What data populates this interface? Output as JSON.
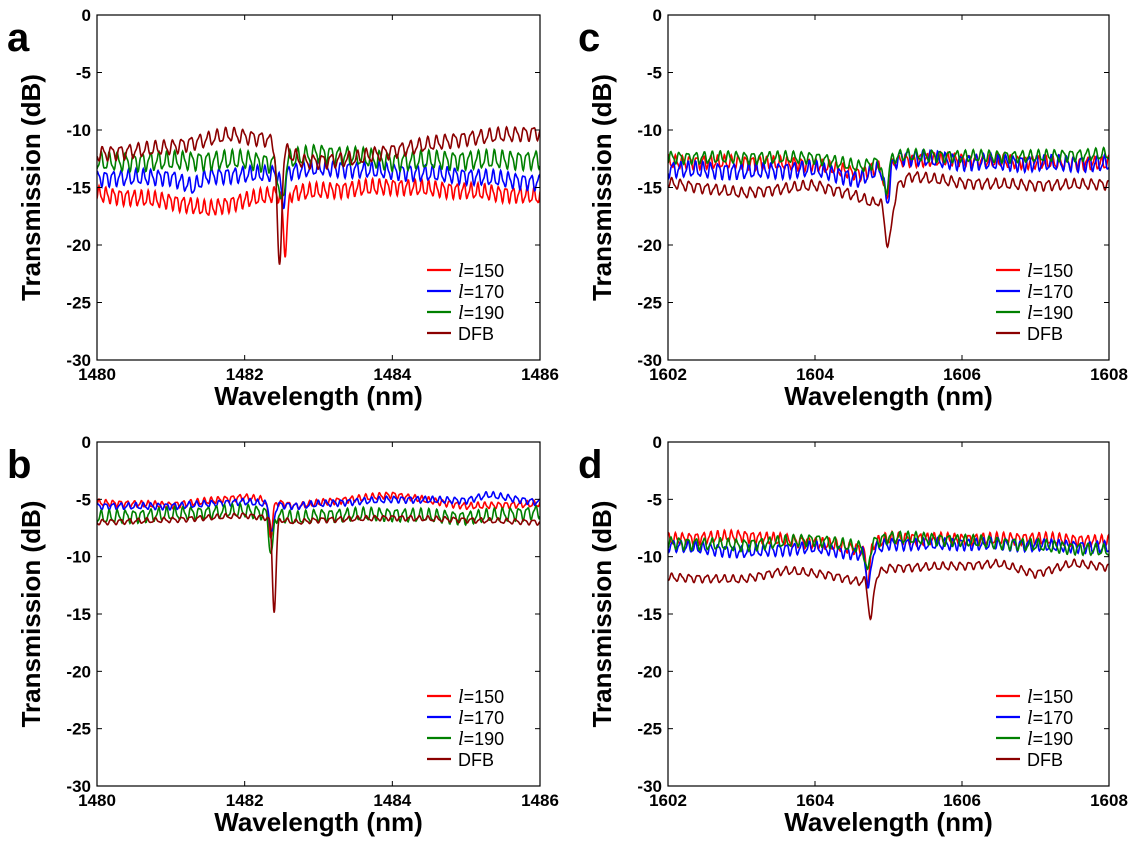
{
  "chart_data": [
    {
      "panel_label": "a",
      "type": "line",
      "xlabel": "Wavelength (nm)",
      "ylabel": "Transmission (dB)",
      "xlim": [
        1480,
        1486
      ],
      "ylim": [
        -30,
        0
      ],
      "xticks": [
        1480,
        1482,
        1484,
        1486
      ],
      "yticks": [
        0,
        -5,
        -10,
        -15,
        -20,
        -25,
        -30
      ],
      "legend": "bottom-right",
      "series": [
        {
          "name": "=150",
          "legend_italic": "l",
          "color": "#ff0000",
          "baseline": [
            [
              1480,
              -15.6
            ],
            [
              1481,
              -16.2
            ],
            [
              1481.5,
              -16.9
            ],
            [
              1482,
              -16.1
            ],
            [
              1482.4,
              -15.6
            ],
            [
              1483,
              -15.3
            ],
            [
              1484,
              -14.9
            ],
            [
              1485,
              -15.3
            ],
            [
              1486,
              -15.8
            ]
          ],
          "ripple": 0.6,
          "dip": {
            "x": 1482.55,
            "depth": -4.8,
            "width": 0.04
          }
        },
        {
          "name": "=170",
          "legend_italic": "l",
          "color": "#0000ff",
          "baseline": [
            [
              1480,
              -14.2
            ],
            [
              1481,
              -14.1
            ],
            [
              1481.3,
              -15.0
            ],
            [
              1481.5,
              -14.0
            ],
            [
              1482.4,
              -13.8
            ],
            [
              1483,
              -13.3
            ],
            [
              1484,
              -13.6
            ],
            [
              1485,
              -14.0
            ],
            [
              1486,
              -14.6
            ]
          ],
          "ripple": 0.6,
          "dip": {
            "x": 1482.52,
            "depth": -2.6,
            "width": 0.04
          }
        },
        {
          "name": "=190",
          "legend_italic": "l",
          "color": "#008000",
          "baseline": [
            [
              1480,
              -12.8
            ],
            [
              1481,
              -12.7
            ],
            [
              1482,
              -12.6
            ],
            [
              1482.4,
              -12.9
            ],
            [
              1483,
              -12.0
            ],
            [
              1484,
              -12.7
            ],
            [
              1485,
              -12.6
            ],
            [
              1486,
              -12.6
            ]
          ],
          "ripple": 0.7,
          "dip": {
            "x": 1482.5,
            "depth": -3.8,
            "width": 0.05
          }
        },
        {
          "name": "DFB",
          "color": "#8b0000",
          "baseline": [
            [
              1480,
              -12.1
            ],
            [
              1481,
              -11.5
            ],
            [
              1481.8,
              -10.4
            ],
            [
              1482.3,
              -10.8
            ],
            [
              1482.8,
              -12.8
            ],
            [
              1483.5,
              -12.5
            ],
            [
              1484,
              -11.8
            ],
            [
              1485,
              -10.7
            ],
            [
              1486,
              -10.2
            ]
          ],
          "ripple": 0.55,
          "dip": {
            "x": 1482.47,
            "depth": -10.8,
            "width": 0.04
          }
        }
      ]
    },
    {
      "panel_label": "c",
      "type": "line",
      "xlabel": "Wavelength (nm)",
      "ylabel": "Transmission (dB)",
      "xlim": [
        1602,
        1608
      ],
      "ylim": [
        -30,
        0
      ],
      "xticks": [
        1602,
        1604,
        1606,
        1608
      ],
      "yticks": [
        0,
        -5,
        -10,
        -15,
        -20,
        -25,
        -30
      ],
      "legend": "bottom-right",
      "series": [
        {
          "name": "=150",
          "legend_italic": "l",
          "color": "#ff0000",
          "baseline": [
            [
              1602,
              -12.8
            ],
            [
              1603,
              -12.8
            ],
            [
              1604,
              -13.0
            ],
            [
              1604.6,
              -13.8
            ],
            [
              1605.2,
              -12.6
            ],
            [
              1606,
              -12.6
            ],
            [
              1607,
              -12.8
            ],
            [
              1608,
              -12.9
            ]
          ],
          "ripple": 0.5,
          "dip": {
            "x": 1604.97,
            "depth": -2.8,
            "width": 0.05
          }
        },
        {
          "name": "=170",
          "legend_italic": "l",
          "color": "#0000ff",
          "baseline": [
            [
              1602,
              -13.4
            ],
            [
              1603,
              -13.6
            ],
            [
              1604,
              -13.4
            ],
            [
              1604.6,
              -14.3
            ],
            [
              1605.2,
              -12.3
            ],
            [
              1606,
              -12.8
            ],
            [
              1607,
              -12.9
            ],
            [
              1608,
              -12.9
            ]
          ],
          "ripple": 0.6,
          "dip": {
            "x": 1604.98,
            "depth": -3.2,
            "width": 0.05
          }
        },
        {
          "name": "=190",
          "legend_italic": "l",
          "color": "#008000",
          "baseline": [
            [
              1602,
              -12.4
            ],
            [
              1603,
              -12.4
            ],
            [
              1604,
              -12.4
            ],
            [
              1604.6,
              -13.2
            ],
            [
              1605.2,
              -12.2
            ],
            [
              1606,
              -12.3
            ],
            [
              1607,
              -12.3
            ],
            [
              1608,
              -12.1
            ]
          ],
          "ripple": 0.45,
          "dip": {
            "x": 1604.96,
            "depth": -2.8,
            "width": 0.05
          }
        },
        {
          "name": "DFB",
          "color": "#8b0000",
          "baseline": [
            [
              1602,
              -14.6
            ],
            [
              1603,
              -15.5
            ],
            [
              1604,
              -14.8
            ],
            [
              1604.5,
              -15.6
            ],
            [
              1604.8,
              -16.4
            ],
            [
              1605.3,
              -14.0
            ],
            [
              1606,
              -14.6
            ],
            [
              1607,
              -14.8
            ],
            [
              1608,
              -14.7
            ]
          ],
          "ripple": 0.4,
          "dip": {
            "x": 1605.0,
            "depth": -4.5,
            "width": 0.07
          }
        }
      ]
    },
    {
      "panel_label": "b",
      "type": "line",
      "xlabel": "Wavelength (nm)",
      "ylabel": "Transmission (dB)",
      "xlim": [
        1480,
        1486
      ],
      "ylim": [
        -30,
        0
      ],
      "xticks": [
        1480,
        1482,
        1484,
        1486
      ],
      "yticks": [
        0,
        -5,
        -10,
        -15,
        -20,
        -25,
        -30
      ],
      "legend": "bottom-right",
      "series": [
        {
          "name": "=150",
          "legend_italic": "l",
          "color": "#ff0000",
          "baseline": [
            [
              1480,
              -5.3
            ],
            [
              1481,
              -5.5
            ],
            [
              1482,
              -4.8
            ],
            [
              1482.3,
              -5.1
            ],
            [
              1482.7,
              -5.6
            ],
            [
              1483,
              -5.3
            ],
            [
              1484,
              -4.6
            ],
            [
              1485,
              -5.6
            ],
            [
              1486,
              -5.4
            ]
          ],
          "ripple": 0.25,
          "dip": {
            "x": 1482.35,
            "depth": -3.0,
            "width": 0.04
          }
        },
        {
          "name": "=170",
          "legend_italic": "l",
          "color": "#0000ff",
          "baseline": [
            [
              1480,
              -5.6
            ],
            [
              1481,
              -5.6
            ],
            [
              1482,
              -5.2
            ],
            [
              1482.3,
              -5.4
            ],
            [
              1482.7,
              -5.6
            ],
            [
              1483,
              -5.4
            ],
            [
              1484,
              -5.0
            ],
            [
              1485,
              -5.1
            ],
            [
              1485.3,
              -4.6
            ],
            [
              1486,
              -5.3
            ]
          ],
          "ripple": 0.25,
          "dip": {
            "x": 1482.37,
            "depth": -2.6,
            "width": 0.04
          }
        },
        {
          "name": "=190",
          "legend_italic": "l",
          "color": "#008000",
          "baseline": [
            [
              1480,
              -6.6
            ],
            [
              1481,
              -6.3
            ],
            [
              1482,
              -6.0
            ],
            [
              1482.3,
              -6.2
            ],
            [
              1482.7,
              -6.7
            ],
            [
              1483,
              -6.4
            ],
            [
              1484,
              -6.3
            ],
            [
              1485,
              -6.6
            ],
            [
              1486,
              -6.1
            ]
          ],
          "ripple": 0.5,
          "dip": {
            "x": 1482.36,
            "depth": -3.5,
            "width": 0.04
          }
        },
        {
          "name": "DFB",
          "color": "#8b0000",
          "baseline": [
            [
              1480,
              -7.0
            ],
            [
              1481,
              -6.8
            ],
            [
              1482,
              -6.4
            ],
            [
              1482.3,
              -6.6
            ],
            [
              1482.7,
              -7.0
            ],
            [
              1483,
              -6.8
            ],
            [
              1484,
              -6.6
            ],
            [
              1485,
              -6.8
            ],
            [
              1486,
              -7.0
            ]
          ],
          "ripple": 0.2,
          "dip": {
            "x": 1482.4,
            "depth": -8.0,
            "width": 0.035
          }
        }
      ]
    },
    {
      "panel_label": "d",
      "type": "line",
      "xlabel": "Wavelength (nm)",
      "ylabel": "Transmission (dB)",
      "xlim": [
        1602,
        1608
      ],
      "ylim": [
        -30,
        0
      ],
      "xticks": [
        1602,
        1604,
        1606,
        1608
      ],
      "yticks": [
        0,
        -5,
        -10,
        -15,
        -20,
        -25,
        -30
      ],
      "legend": "bottom-right",
      "series": [
        {
          "name": "=150",
          "legend_italic": "l",
          "color": "#ff0000",
          "baseline": [
            [
              1602,
              -8.5
            ],
            [
              1603,
              -8.2
            ],
            [
              1604,
              -8.8
            ],
            [
              1604.6,
              -9.3
            ],
            [
              1605,
              -8.4
            ],
            [
              1606,
              -8.5
            ],
            [
              1607,
              -8.4
            ],
            [
              1608,
              -8.7
            ]
          ],
          "ripple": 0.45,
          "dip": {
            "x": 1604.72,
            "depth": -3.0,
            "width": 0.04
          }
        },
        {
          "name": "=170",
          "legend_italic": "l",
          "color": "#0000ff",
          "baseline": [
            [
              1602,
              -9.0
            ],
            [
              1603,
              -9.6
            ],
            [
              1604,
              -9.2
            ],
            [
              1604.6,
              -9.8
            ],
            [
              1605,
              -8.9
            ],
            [
              1606,
              -8.9
            ],
            [
              1607,
              -9.0
            ],
            [
              1608,
              -9.2
            ]
          ],
          "ripple": 0.45,
          "dip": {
            "x": 1604.73,
            "depth": -3.3,
            "width": 0.04
          }
        },
        {
          "name": "=190",
          "legend_italic": "l",
          "color": "#008000",
          "baseline": [
            [
              1602,
              -8.8
            ],
            [
              1603,
              -9.0
            ],
            [
              1604,
              -8.5
            ],
            [
              1604.6,
              -9.2
            ],
            [
              1605,
              -8.3
            ],
            [
              1606,
              -8.6
            ],
            [
              1607,
              -9.0
            ],
            [
              1608,
              -9.5
            ]
          ],
          "ripple": 0.45,
          "dip": {
            "x": 1604.71,
            "depth": -2.5,
            "width": 0.04
          }
        },
        {
          "name": "DFB",
          "color": "#8b0000",
          "baseline": [
            [
              1602,
              -11.8
            ],
            [
              1603,
              -12.0
            ],
            [
              1603.6,
              -11.2
            ],
            [
              1604.2,
              -11.6
            ],
            [
              1604.6,
              -12.2
            ],
            [
              1605,
              -11.0
            ],
            [
              1606,
              -10.8
            ],
            [
              1606.5,
              -10.6
            ],
            [
              1607,
              -11.5
            ],
            [
              1607.5,
              -10.6
            ],
            [
              1608,
              -10.9
            ]
          ],
          "ripple": 0.3,
          "dip": {
            "x": 1604.76,
            "depth": -3.6,
            "width": 0.05
          }
        }
      ]
    }
  ]
}
